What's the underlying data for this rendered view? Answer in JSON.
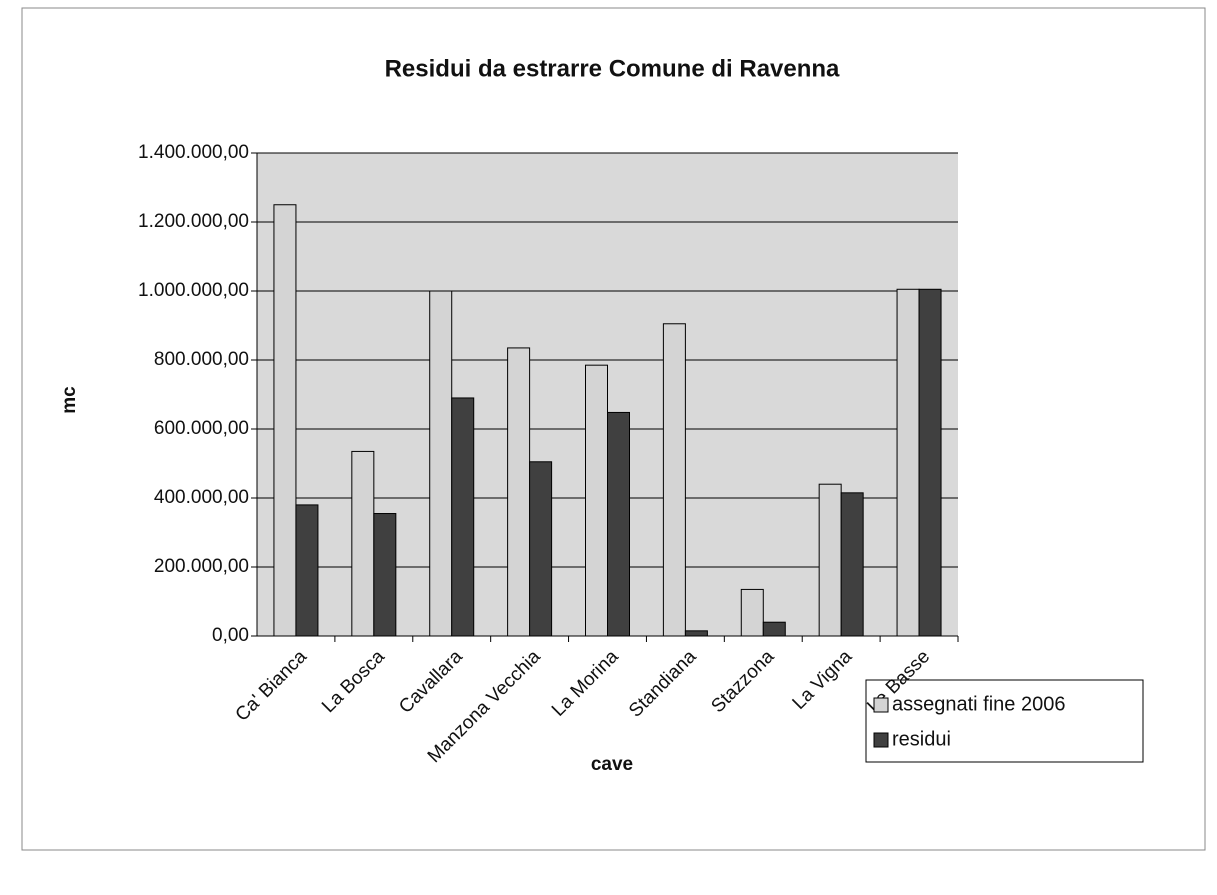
{
  "chart_data": {
    "type": "bar",
    "title": "Residui da estrarre Comune di Ravenna",
    "xlabel": "cave",
    "ylabel": "mc",
    "categories": [
      "Ca' Bianca",
      "La Bosca",
      "Cavallara",
      "Manzona Vecchia",
      "La Morina",
      "Standiana",
      "Stazzona",
      "La Vigna",
      "Le Basse"
    ],
    "series": [
      {
        "name": "assegnati fine 2006",
        "color": "#d4d4d4",
        "values": [
          1250000,
          535000,
          1000000,
          835000,
          785000,
          905000,
          135000,
          440000,
          1005000
        ]
      },
      {
        "name": "residui",
        "color": "#404040",
        "values": [
          380000,
          355000,
          690000,
          505000,
          648000,
          15000,
          40000,
          415000,
          1005000
        ]
      }
    ],
    "ylim": [
      0,
      1400000
    ],
    "yticks": [
      {
        "value": 0,
        "label": "0,00"
      },
      {
        "value": 200000,
        "label": "200.000,00"
      },
      {
        "value": 400000,
        "label": "400.000,00"
      },
      {
        "value": 600000,
        "label": "600.000,00"
      },
      {
        "value": 800000,
        "label": "800.000,00"
      },
      {
        "value": 1000000,
        "label": "1.000.000,00"
      },
      {
        "value": 1200000,
        "label": "1.200.000,00"
      },
      {
        "value": 1400000,
        "label": "1.400.000,00"
      }
    ],
    "grid": true,
    "legend": "bottom-right"
  }
}
